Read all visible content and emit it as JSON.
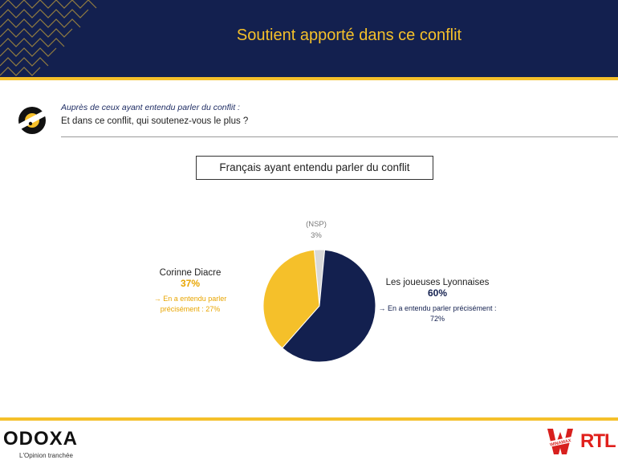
{
  "header": {
    "title": "Soutient apporté dans ce conflit"
  },
  "question": {
    "intro": "Auprès de ceux ayant entendu parler du conflit :",
    "text": "Et dans ce conflit, qui soutenez-vous le plus ?"
  },
  "subset_label": "Français ayant entendu parler du conflit",
  "colors": {
    "navy": "#13204f",
    "yellow": "#f5c02a",
    "grey": "#d9d9d9"
  },
  "chart_data": {
    "type": "pie",
    "slices": [
      {
        "label": "Les joueuses Lyonnaises",
        "value": 60,
        "value_label": "60%",
        "note": "→ En a entendu parler précisément : 72%",
        "color": "#13204f"
      },
      {
        "label": "Corinne Diacre",
        "value": 37,
        "value_label": "37%",
        "note": "→ En a entendu parler précisément : 27%",
        "color": "#f5c02a"
      },
      {
        "label": "(NSP)",
        "value": 3,
        "value_label": "3%",
        "note": "",
        "color": "#d9d9d9"
      }
    ]
  },
  "footer": {
    "brand": "ODOXA",
    "tagline": "L'Opinion tranchée",
    "partner_1": "WINAMAX",
    "partner_2": "RTL"
  }
}
